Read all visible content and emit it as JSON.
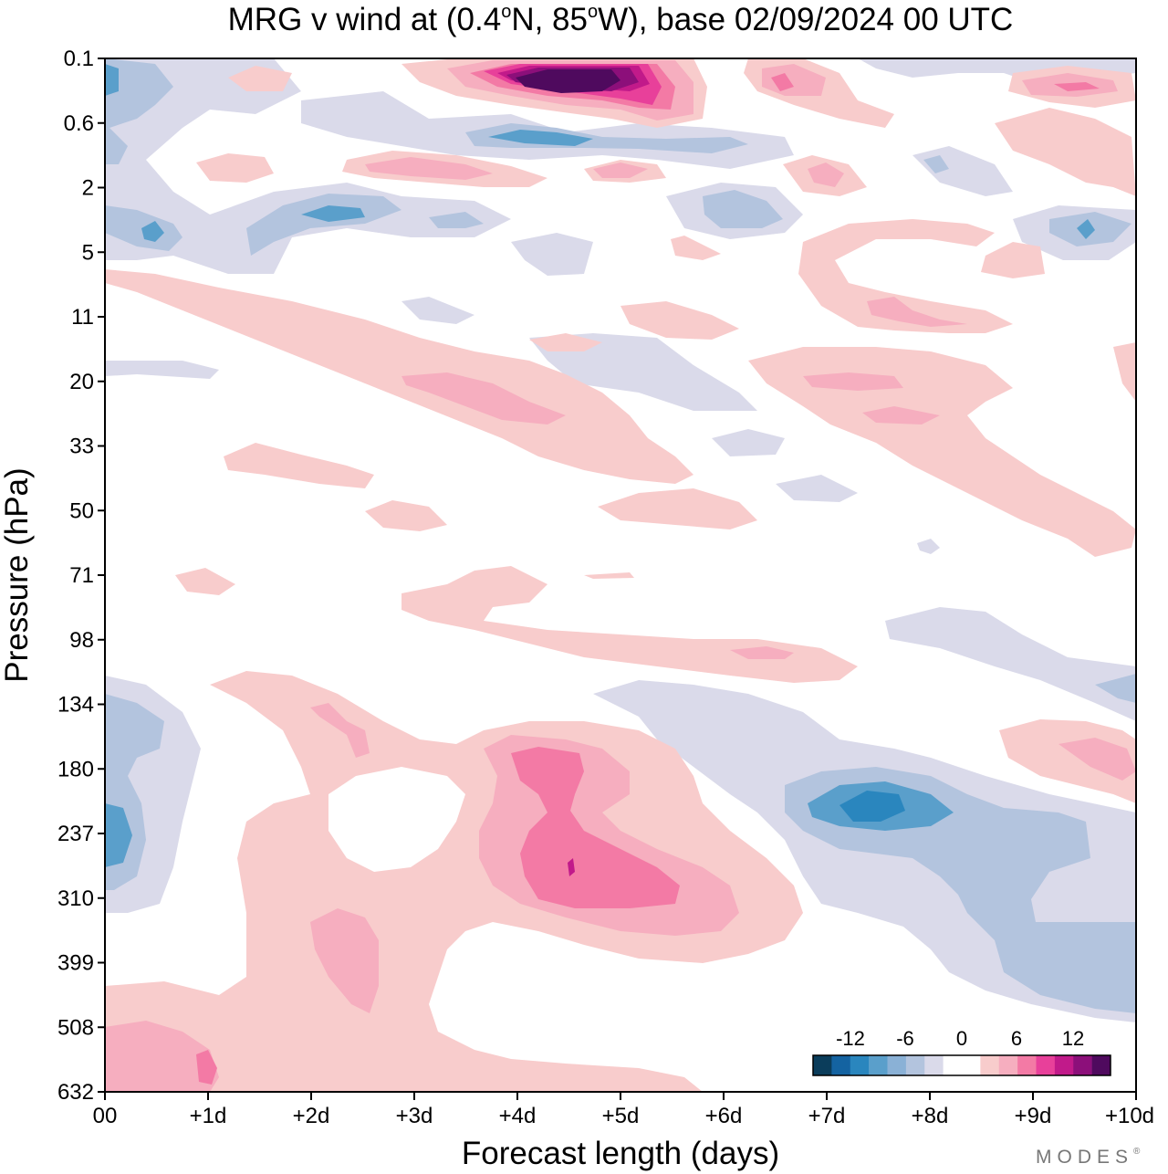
{
  "title": {
    "prefix": "MRG v wind at (0.4",
    "deg1": "o",
    "mid": "N, 85",
    "deg2": "o",
    "suffix": "W),  base 02/09/2024  00 UTC"
  },
  "watermark": "MODES",
  "watermark_mark": "®",
  "colors": {
    "neg": [
      "#0b3d5b",
      "#1463a1",
      "#2a86be",
      "#5a9fcb",
      "#8ab1d6",
      "#b3c4de",
      "#dadaea"
    ],
    "zero": "#ffffff",
    "pos": [
      "#f8cccc",
      "#f6aebf",
      "#f37aa5",
      "#e8409a",
      "#c11a8a",
      "#8c0f7a",
      "#4f0a5e"
    ]
  },
  "chart_data": {
    "type": "heatmap",
    "title": "MRG v wind at (0.4°N, 85°W),  base 02/09/2024  00 UTC",
    "xlabel": "Forecast length (days)",
    "ylabel": "Pressure (hPa)",
    "x_tick_labels": [
      "00",
      "+1d",
      "+2d",
      "+3d",
      "+4d",
      "+5d",
      "+6d",
      "+7d",
      "+8d",
      "+9d",
      "+10d"
    ],
    "y_tick_labels": [
      "0.1",
      "0.6",
      "2",
      "5",
      "11",
      "20",
      "33",
      "50",
      "71",
      "98",
      "134",
      "180",
      "237",
      "310",
      "399",
      "508",
      "632"
    ],
    "xlim": [
      0,
      10
    ],
    "ylim": [
      "0.1",
      "632"
    ],
    "colorbar": {
      "tick_labels": [
        "-12",
        "-6",
        "0",
        "6",
        "12"
      ],
      "levels": [
        -14,
        -12,
        -10,
        -8,
        -6,
        -4,
        -2,
        -1,
        1,
        2,
        4,
        6,
        8,
        10,
        12,
        14
      ]
    },
    "features": [
      {
        "x": [
          3.4,
          6.0
        ],
        "p": [
          "0.1",
          "0.6"
        ],
        "value": 16
      },
      {
        "x": [
          3.6,
          5.0
        ],
        "p": [
          "0.6",
          "2"
        ],
        "value": -9
      },
      {
        "x": [
          3.5,
          6.0
        ],
        "p": [
          "134",
          "399"
        ],
        "value": 10
      },
      {
        "x": [
          6.5,
          8.5
        ],
        "p": [
          "134",
          "310"
        ],
        "value": -9
      },
      {
        "x": [
          0,
          1.5
        ],
        "p": [
          "508",
          "632"
        ],
        "value": 7
      },
      {
        "x": [
          2.0,
          3.0
        ],
        "p": [
          "310",
          "508"
        ],
        "value": 4
      }
    ]
  }
}
